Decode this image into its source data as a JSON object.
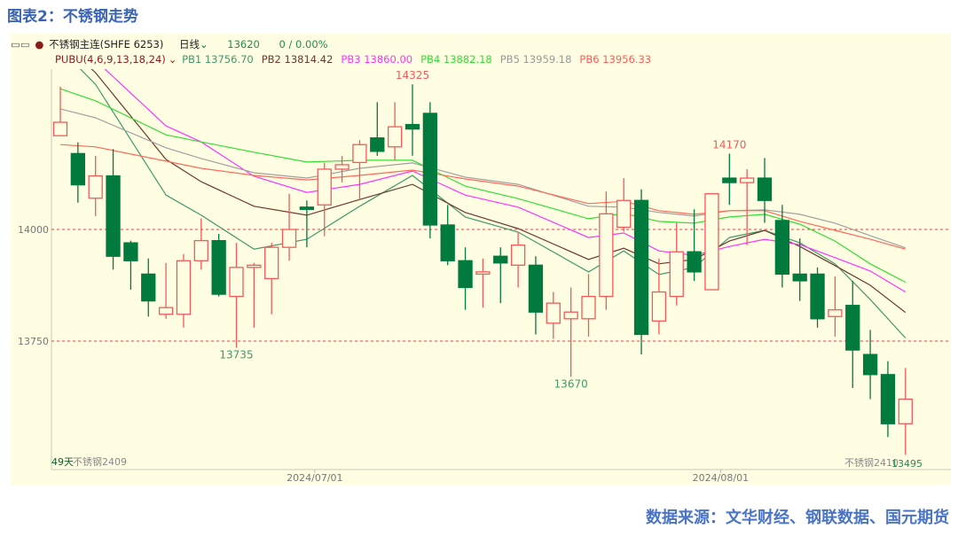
{
  "title": "图表2：不锈钢走势",
  "source": "数据来源：文华财经、钢联数据、国元期货",
  "header": {
    "contract_name": "不锈钢主连(SHFE 6253)",
    "period": "日线",
    "last_price": "13620",
    "change": "0 / 0.00%",
    "indicator": "PUBU(4,6,9,13,18,24)",
    "pb_values": [
      {
        "label": "PB1 13756.70",
        "color": "#3f9a6a"
      },
      {
        "label": "PB2 13814.42",
        "color": "#6b3a2a"
      },
      {
        "label": "PB3 13860.00",
        "color": "#ff33ff"
      },
      {
        "label": "PB4 13882.18",
        "color": "#33dd33"
      },
      {
        "label": "PB5 13959.18",
        "color": "#999999"
      },
      {
        "label": "PB6 13956.33",
        "color": "#ff5a5a"
      }
    ]
  },
  "footer": {
    "days": "49天",
    "left_contract": "不锈钢2409",
    "right_contract": "不锈钢2410",
    "min_label": "13495"
  },
  "chart_data": {
    "type": "candlestick",
    "y_ticks": [
      "14000",
      "13750"
    ],
    "x_ticks": [
      "2024/07/01",
      "2024/08/01"
    ],
    "up_color": "#f25a5a",
    "down_color": "#007a3d",
    "annotations": [
      {
        "candle": 21,
        "text": "14325",
        "type": "high"
      },
      {
        "candle": 39,
        "text": "14170",
        "type": "high"
      },
      {
        "candle": 11,
        "text": "13735",
        "type": "low"
      },
      {
        "candle": 30,
        "text": "13670",
        "type": "low"
      }
    ],
    "candles_ohlc": [
      [
        14210,
        14240,
        14320,
        14210
      ],
      [
        14170,
        14100,
        14195,
        14060
      ],
      [
        14070,
        14120,
        14165,
        14030
      ],
      [
        14120,
        13940,
        14180,
        13910
      ],
      [
        13970,
        13930,
        13975,
        13865
      ],
      [
        13900,
        13840,
        13935,
        13805
      ],
      [
        13810,
        13825,
        13925,
        13800
      ],
      [
        13810,
        13930,
        13945,
        13780
      ],
      [
        13930,
        13975,
        14025,
        13910
      ],
      [
        13975,
        13855,
        13990,
        13850
      ],
      [
        13850,
        13915,
        13970,
        13735
      ],
      [
        13915,
        13920,
        13925,
        13780
      ],
      [
        13890,
        13960,
        13970,
        13810
      ],
      [
        13960,
        14000,
        14080,
        13930
      ],
      [
        14050,
        14045,
        14065,
        13960
      ],
      [
        14055,
        14135,
        14150,
        13985
      ],
      [
        14135,
        14145,
        14165,
        14105
      ],
      [
        14150,
        14190,
        14200,
        14065
      ],
      [
        14205,
        14175,
        14285,
        14165
      ],
      [
        14185,
        14230,
        14285,
        14155
      ],
      [
        14235,
        14225,
        14325,
        14165
      ],
      [
        14260,
        14010,
        14285,
        13980
      ],
      [
        14010,
        13930,
        14055,
        13920
      ],
      [
        13930,
        13870,
        13960,
        13820
      ],
      [
        13900,
        13905,
        13935,
        13825
      ],
      [
        13940,
        13925,
        13960,
        13835
      ],
      [
        13920,
        13965,
        13995,
        13870
      ],
      [
        13920,
        13815,
        13940,
        13765
      ],
      [
        13790,
        13835,
        13860,
        13755
      ],
      [
        13800,
        13815,
        13870,
        13670
      ],
      [
        13800,
        13850,
        13900,
        13760
      ],
      [
        13850,
        14035,
        14085,
        13820
      ],
      [
        14005,
        14065,
        14115,
        13995
      ],
      [
        14065,
        13765,
        14090,
        13720
      ],
      [
        13795,
        13860,
        13935,
        13765
      ],
      [
        13850,
        13950,
        14015,
        13830
      ],
      [
        13950,
        13905,
        14045,
        13885
      ],
      [
        13865,
        14080,
        14080,
        13865
      ],
      [
        14115,
        14105,
        14170,
        14055
      ],
      [
        14105,
        14115,
        14135,
        13965
      ],
      [
        14115,
        14065,
        14160,
        14015
      ],
      [
        14020,
        13900,
        14055,
        13870
      ],
      [
        13900,
        13885,
        13980,
        13840
      ],
      [
        13900,
        13800,
        13915,
        13780
      ],
      [
        13805,
        13820,
        13895,
        13760
      ],
      [
        13830,
        13730,
        13885,
        13645
      ],
      [
        13720,
        13675,
        13775,
        13620
      ],
      [
        13675,
        13565,
        13705,
        13535
      ],
      [
        13565,
        13620,
        13690,
        13495
      ]
    ],
    "lines_sample_candles": [
      1,
      3,
      7,
      9,
      12,
      15,
      18,
      21,
      24,
      27,
      31,
      33,
      35,
      37,
      39,
      41,
      43,
      45,
      47,
      49
    ],
    "lines": [
      {
        "name": "PB1",
        "color": "#3f9a6a",
        "values": [
          14405,
          14325,
          14077,
          14032,
          13956,
          13978,
          14052,
          14121,
          14028,
          13994,
          13905,
          13952,
          13899,
          13915,
          13982,
          13998,
          13970,
          13923,
          13843,
          13757
        ]
      },
      {
        "name": "PB2",
        "color": "#6b3a2a",
        "values": [
          14425,
          14351,
          14157,
          14107,
          14052,
          14032,
          14067,
          14101,
          14038,
          14002,
          13933,
          13958,
          13923,
          13933,
          13974,
          13998,
          13962,
          13919,
          13875,
          13814
        ]
      },
      {
        "name": "PB3",
        "color": "#ff33ff",
        "values": [
          14434,
          14379,
          14232,
          14196,
          14119,
          14083,
          14101,
          14131,
          14077,
          14050,
          13982,
          13992,
          13952,
          13942,
          13962,
          13978,
          13966,
          13937,
          13907,
          13860
        ]
      },
      {
        "name": "PB4",
        "color": "#33dd33",
        "values": [
          14315,
          14288,
          14212,
          14196,
          14173,
          14151,
          14155,
          14155,
          14097,
          14069,
          14024,
          14036,
          14018,
          14014,
          14028,
          14034,
          14012,
          13974,
          13923,
          13882
        ]
      },
      {
        "name": "PB5",
        "color": "#a0a0a0",
        "values": [
          14270,
          14250,
          14183,
          14159,
          14127,
          14115,
          14137,
          14149,
          14117,
          14101,
          14052,
          14050,
          14038,
          14030,
          14042,
          14044,
          14034,
          14014,
          13986,
          13959
        ]
      },
      {
        "name": "PB6",
        "color": "#ff6a5a",
        "values": [
          14190,
          14185,
          14153,
          14137,
          14121,
          14111,
          14121,
          14133,
          14113,
          14097,
          14058,
          14063,
          14042,
          14034,
          14042,
          14042,
          14018,
          13998,
          13978,
          13956
        ]
      }
    ]
  }
}
